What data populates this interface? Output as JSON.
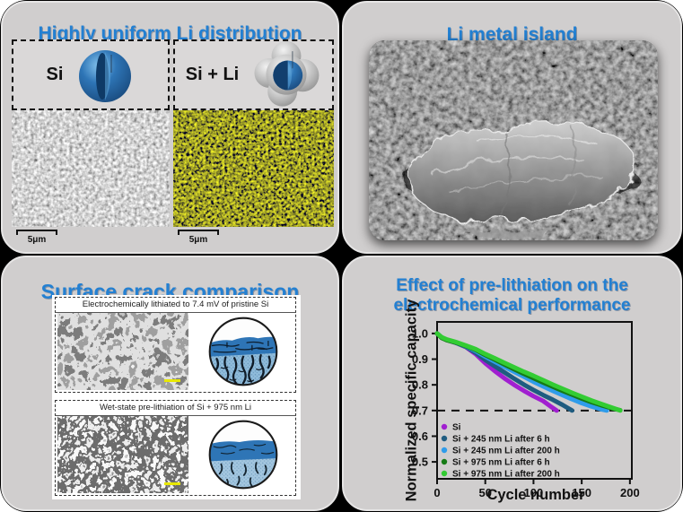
{
  "panels": {
    "li_distribution": {
      "title": "Highly uniform Li distribution",
      "left_label": "Si",
      "right_label": "Si + Li",
      "left_scalebar": "5μm",
      "right_scalebar": "5μm"
    },
    "li_island": {
      "title": "Li metal island"
    },
    "crack": {
      "title": "Surface crack comparison",
      "top_caption": "Electrochemically lithiated to 7.4 mV of pristine Si",
      "bottom_caption": "Wet-state pre-lithiation of Si + 975 nm Li"
    },
    "performance": {
      "title_line1": "Effect of pre-lithiation on the",
      "title_line2": "electrochemical performance"
    }
  },
  "colors": {
    "title_blue": "#2380D2",
    "panel_bg": "#D0CECE",
    "figure_bg": "#000000",
    "si_sphere_blue": "#2E75B6",
    "eds_map_yellow": "#C8C800",
    "crack_scalebar_yellow": "#E8E800"
  },
  "chart_data": {
    "type": "line",
    "title": "Effect of pre-lithiation on the electrochemical performance",
    "xlabel": "Cycle number",
    "ylabel": "Normalized specific capacity",
    "xlim": [
      0,
      202
    ],
    "ylim": [
      0.434,
      1.045
    ],
    "xticks": [
      0,
      50,
      100,
      150,
      200
    ],
    "yticks": [
      0.5,
      0.6,
      0.7,
      0.8,
      0.9,
      1.0
    ],
    "dashed_line_y": 0.7,
    "grid": false,
    "legend_position": "bottom-left",
    "series": [
      {
        "name": "Si",
        "color": "#A11FD0",
        "points": [
          [
            0,
            1.0
          ],
          [
            5,
            0.983
          ],
          [
            10,
            0.975
          ],
          [
            20,
            0.963
          ],
          [
            30,
            0.947
          ],
          [
            40,
            0.92
          ],
          [
            50,
            0.884
          ],
          [
            60,
            0.853
          ],
          [
            70,
            0.825
          ],
          [
            80,
            0.8
          ],
          [
            90,
            0.777
          ],
          [
            100,
            0.756
          ],
          [
            110,
            0.737
          ],
          [
            118,
            0.715
          ],
          [
            124,
            0.7
          ]
        ]
      },
      {
        "name": "Si + 245 nm Li after 6 h",
        "color": "#1F5C80",
        "points": [
          [
            0,
            1.0
          ],
          [
            5,
            0.983
          ],
          [
            10,
            0.975
          ],
          [
            20,
            0.963
          ],
          [
            30,
            0.948
          ],
          [
            40,
            0.925
          ],
          [
            50,
            0.897
          ],
          [
            60,
            0.872
          ],
          [
            70,
            0.848
          ],
          [
            80,
            0.824
          ],
          [
            90,
            0.801
          ],
          [
            100,
            0.78
          ],
          [
            110,
            0.76
          ],
          [
            120,
            0.742
          ],
          [
            130,
            0.722
          ],
          [
            140,
            0.7
          ]
        ]
      },
      {
        "name": "Si + 245 nm Li after 200 h",
        "color": "#2F9CEA",
        "points": [
          [
            0,
            1.0
          ],
          [
            5,
            0.984
          ],
          [
            10,
            0.976
          ],
          [
            20,
            0.964
          ],
          [
            30,
            0.95
          ],
          [
            40,
            0.932
          ],
          [
            50,
            0.91
          ],
          [
            60,
            0.89
          ],
          [
            70,
            0.87
          ],
          [
            80,
            0.851
          ],
          [
            90,
            0.832
          ],
          [
            100,
            0.812
          ],
          [
            110,
            0.794
          ],
          [
            120,
            0.777
          ],
          [
            130,
            0.76
          ],
          [
            140,
            0.744
          ],
          [
            150,
            0.729
          ],
          [
            160,
            0.716
          ],
          [
            170,
            0.705
          ],
          [
            176,
            0.7
          ]
        ]
      },
      {
        "name": "Si + 975 nm Li after 6 h",
        "color": "#157A15",
        "points": [
          [
            0,
            1.0
          ],
          [
            5,
            0.982
          ],
          [
            10,
            0.974
          ],
          [
            20,
            0.964
          ],
          [
            30,
            0.951
          ],
          [
            40,
            0.936
          ],
          [
            50,
            0.916
          ],
          [
            60,
            0.898
          ],
          [
            70,
            0.879
          ],
          [
            80,
            0.861
          ],
          [
            90,
            0.843
          ],
          [
            100,
            0.826
          ],
          [
            110,
            0.809
          ],
          [
            120,
            0.793
          ],
          [
            130,
            0.777
          ],
          [
            140,
            0.762
          ],
          [
            150,
            0.747
          ],
          [
            160,
            0.733
          ],
          [
            170,
            0.721
          ],
          [
            180,
            0.71
          ],
          [
            190,
            0.701
          ]
        ]
      },
      {
        "name": "Si + 975 nm Li after 200 h",
        "color": "#33CC33",
        "points": [
          [
            0,
            1.0
          ],
          [
            5,
            0.985
          ],
          [
            10,
            0.977
          ],
          [
            20,
            0.966
          ],
          [
            30,
            0.953
          ],
          [
            40,
            0.939
          ],
          [
            50,
            0.92
          ],
          [
            60,
            0.903
          ],
          [
            70,
            0.885
          ],
          [
            80,
            0.868
          ],
          [
            90,
            0.851
          ],
          [
            100,
            0.835
          ],
          [
            110,
            0.818
          ],
          [
            120,
            0.801
          ],
          [
            130,
            0.785
          ],
          [
            140,
            0.769
          ],
          [
            150,
            0.754
          ],
          [
            160,
            0.739
          ],
          [
            170,
            0.726
          ],
          [
            180,
            0.713
          ],
          [
            190,
            0.7
          ]
        ]
      }
    ]
  }
}
